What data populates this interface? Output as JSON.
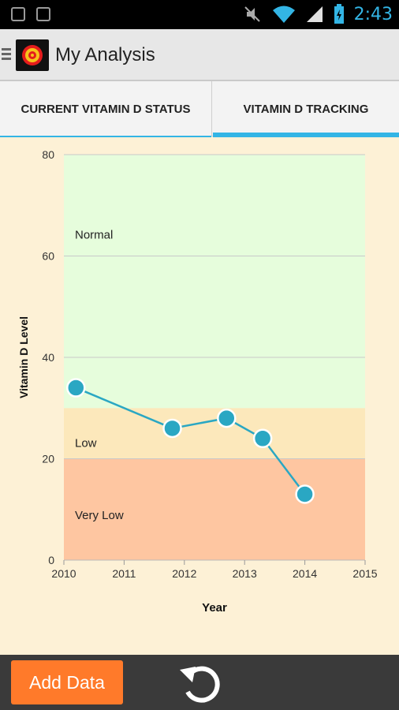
{
  "status_bar": {
    "time": "2:43",
    "icons": [
      "usb-icon",
      "debug-icon",
      "mute-icon",
      "wifi-icon",
      "signal-icon",
      "battery-icon"
    ]
  },
  "app": {
    "title": "My Analysis",
    "icon": "app-logo-icon"
  },
  "tabs": [
    {
      "label": "CURRENT VITAMIN D STATUS",
      "selected": false
    },
    {
      "label": "VITAMIN D TRACKING",
      "selected": true
    }
  ],
  "chart_data": {
    "type": "line",
    "xlabel": "Year",
    "ylabel": "Vitamin D Level",
    "xlim": [
      2010,
      2015
    ],
    "ylim": [
      0,
      80
    ],
    "x_ticks": [
      "2010",
      "2011",
      "2012",
      "2013",
      "2014",
      "2015"
    ],
    "y_ticks": [
      "0",
      "20",
      "40",
      "60",
      "80"
    ],
    "y_tick_values": [
      0,
      20,
      40,
      60,
      80
    ],
    "x_tick_values": [
      2010,
      2011,
      2012,
      2013,
      2014,
      2015
    ],
    "grid": true,
    "bands": [
      {
        "label": "Very Low",
        "from": 0,
        "to": 20,
        "color": "#fec6a1"
      },
      {
        "label": "Low",
        "from": 20,
        "to": 30,
        "color": "#fce8bb"
      },
      {
        "label": "Normal",
        "from": 30,
        "to": 80,
        "color": "#e6fddc"
      }
    ],
    "series": [
      {
        "color": "#2aa7c3",
        "points": [
          {
            "x": 2010.2,
            "y": 34
          },
          {
            "x": 2011.8,
            "y": 26
          },
          {
            "x": 2012.7,
            "y": 28
          },
          {
            "x": 2013.3,
            "y": 24
          },
          {
            "x": 2014.0,
            "y": 13
          }
        ]
      }
    ]
  },
  "bottom_bar": {
    "add_label": "Add Data",
    "add_color": "#ff7a2a",
    "refresh_icon": "refresh-icon"
  }
}
